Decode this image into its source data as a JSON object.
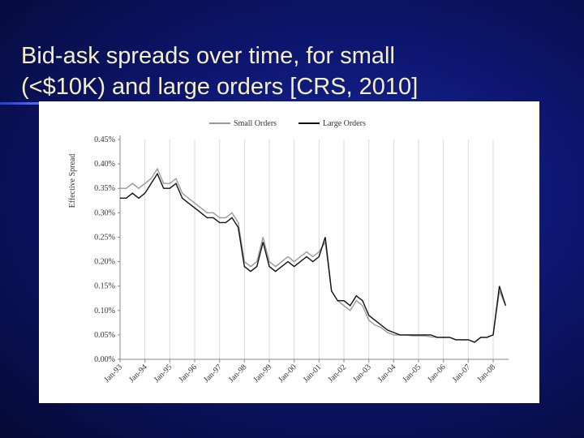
{
  "slide": {
    "title_lines": [
      "Bid-ask spreads over time, for small",
      "(<$10K) and large orders  [CRS, 2010]"
    ]
  },
  "chart_data": {
    "type": "line",
    "ylabel": "Effective Spread",
    "categories": [
      "Jan-93",
      null,
      null,
      null,
      "Jan-94",
      null,
      null,
      null,
      "Jan-95",
      null,
      null,
      null,
      "Jan-96",
      null,
      null,
      null,
      "Jan-97",
      null,
      null,
      null,
      "Jan-98",
      null,
      null,
      null,
      "Jan-99",
      null,
      null,
      null,
      "Jan-00",
      null,
      null,
      null,
      "Jan-01",
      null,
      null,
      null,
      "Jan-02",
      null,
      null,
      null,
      "Jan-03",
      null,
      null,
      null,
      "Jan-04",
      null,
      null,
      null,
      "Jan-05",
      null,
      null,
      null,
      "Jan-06",
      null,
      null,
      null,
      "Jan-07",
      null,
      null,
      null,
      "Jan-08",
      null,
      null
    ],
    "series": [
      {
        "name": "Small Orders",
        "color": "#999999",
        "values": [
          0.35,
          0.35,
          0.36,
          0.35,
          0.36,
          0.37,
          0.39,
          0.36,
          0.36,
          0.37,
          0.34,
          0.33,
          0.32,
          0.31,
          0.3,
          0.3,
          0.29,
          0.29,
          0.3,
          0.28,
          0.2,
          0.19,
          0.2,
          0.25,
          0.2,
          0.19,
          0.2,
          0.21,
          0.2,
          0.21,
          0.22,
          0.21,
          0.22,
          0.24,
          0.14,
          0.12,
          0.11,
          0.1,
          0.12,
          0.11,
          0.08,
          0.07,
          0.065,
          0.055,
          0.05,
          0.05,
          0.05,
          0.048,
          0.048,
          0.048,
          0.046,
          0.045,
          0.045,
          0.045,
          0.04,
          0.04,
          0.04,
          0.035,
          0.045,
          0.045,
          0.05,
          0.14,
          0.11
        ]
      },
      {
        "name": "Large Orders",
        "color": "#111111",
        "values": [
          0.33,
          0.33,
          0.34,
          0.33,
          0.34,
          0.36,
          0.38,
          0.35,
          0.35,
          0.36,
          0.33,
          0.32,
          0.31,
          0.3,
          0.29,
          0.29,
          0.28,
          0.28,
          0.29,
          0.27,
          0.19,
          0.18,
          0.19,
          0.24,
          0.19,
          0.18,
          0.19,
          0.2,
          0.19,
          0.2,
          0.21,
          0.2,
          0.21,
          0.25,
          0.14,
          0.12,
          0.12,
          0.11,
          0.13,
          0.12,
          0.09,
          0.08,
          0.07,
          0.06,
          0.055,
          0.05,
          0.05,
          0.05,
          0.05,
          0.05,
          0.05,
          0.045,
          0.045,
          0.045,
          0.04,
          0.04,
          0.04,
          0.035,
          0.045,
          0.045,
          0.05,
          0.15,
          0.11
        ]
      }
    ],
    "ylim": [
      0,
      0.45
    ],
    "yticks": [
      {
        "value": 0,
        "label": "0.00%"
      },
      {
        "value": 0.05,
        "label": "0.05%"
      },
      {
        "value": 0.1,
        "label": "0.10%"
      },
      {
        "value": 0.15,
        "label": "0.15%"
      },
      {
        "value": 0.2,
        "label": "0.20%"
      },
      {
        "value": 0.25,
        "label": "0.25%"
      },
      {
        "value": 0.3,
        "label": "0.30%"
      },
      {
        "value": 0.35,
        "label": "0.35%"
      },
      {
        "value": 0.4,
        "label": "0.40%"
      },
      {
        "value": 0.45,
        "label": "0.45%"
      }
    ],
    "grid": true,
    "legend": "top"
  }
}
